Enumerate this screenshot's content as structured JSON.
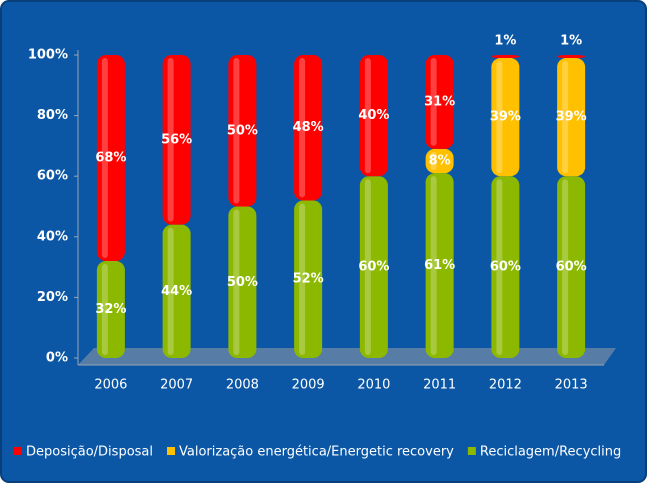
{
  "chart_data": {
    "type": "stacked_bar",
    "categories": [
      "2006",
      "2007",
      "2008",
      "2009",
      "2010",
      "2011",
      "2012",
      "2013"
    ],
    "series": [
      {
        "name": "Reciclagem/Recycling",
        "color": "#8cb800",
        "values": [
          32,
          44,
          50,
          52,
          60,
          61,
          60,
          60
        ],
        "value_labels": [
          "32%",
          "44%",
          "50%",
          "52%",
          "60%",
          "61%",
          "60%",
          "60%"
        ]
      },
      {
        "name": "Valorização energética/Energetic recovery",
        "color": "#ffc000",
        "values": [
          null,
          null,
          null,
          null,
          null,
          8,
          39,
          39
        ],
        "value_labels": [
          null,
          null,
          null,
          null,
          null,
          "8%",
          "39%",
          "39%"
        ]
      },
      {
        "name": "Deposição/Disposal",
        "color": "#ff0000",
        "values": [
          68,
          56,
          50,
          48,
          40,
          31,
          1,
          1
        ],
        "value_labels": [
          "68%",
          "56%",
          "50%",
          "48%",
          "40%",
          "31%",
          "1%",
          "1%"
        ]
      }
    ],
    "legend_order": [
      2,
      1,
      0
    ],
    "ylim": [
      0,
      100
    ],
    "yticks": [
      {
        "value": 0,
        "label": "0%"
      },
      {
        "value": 20,
        "label": "20%"
      },
      {
        "value": 40,
        "label": "40%"
      },
      {
        "value": 60,
        "label": "60%"
      },
      {
        "value": 80,
        "label": "80%"
      },
      {
        "value": 100,
        "label": "100%"
      }
    ],
    "grid": false
  }
}
